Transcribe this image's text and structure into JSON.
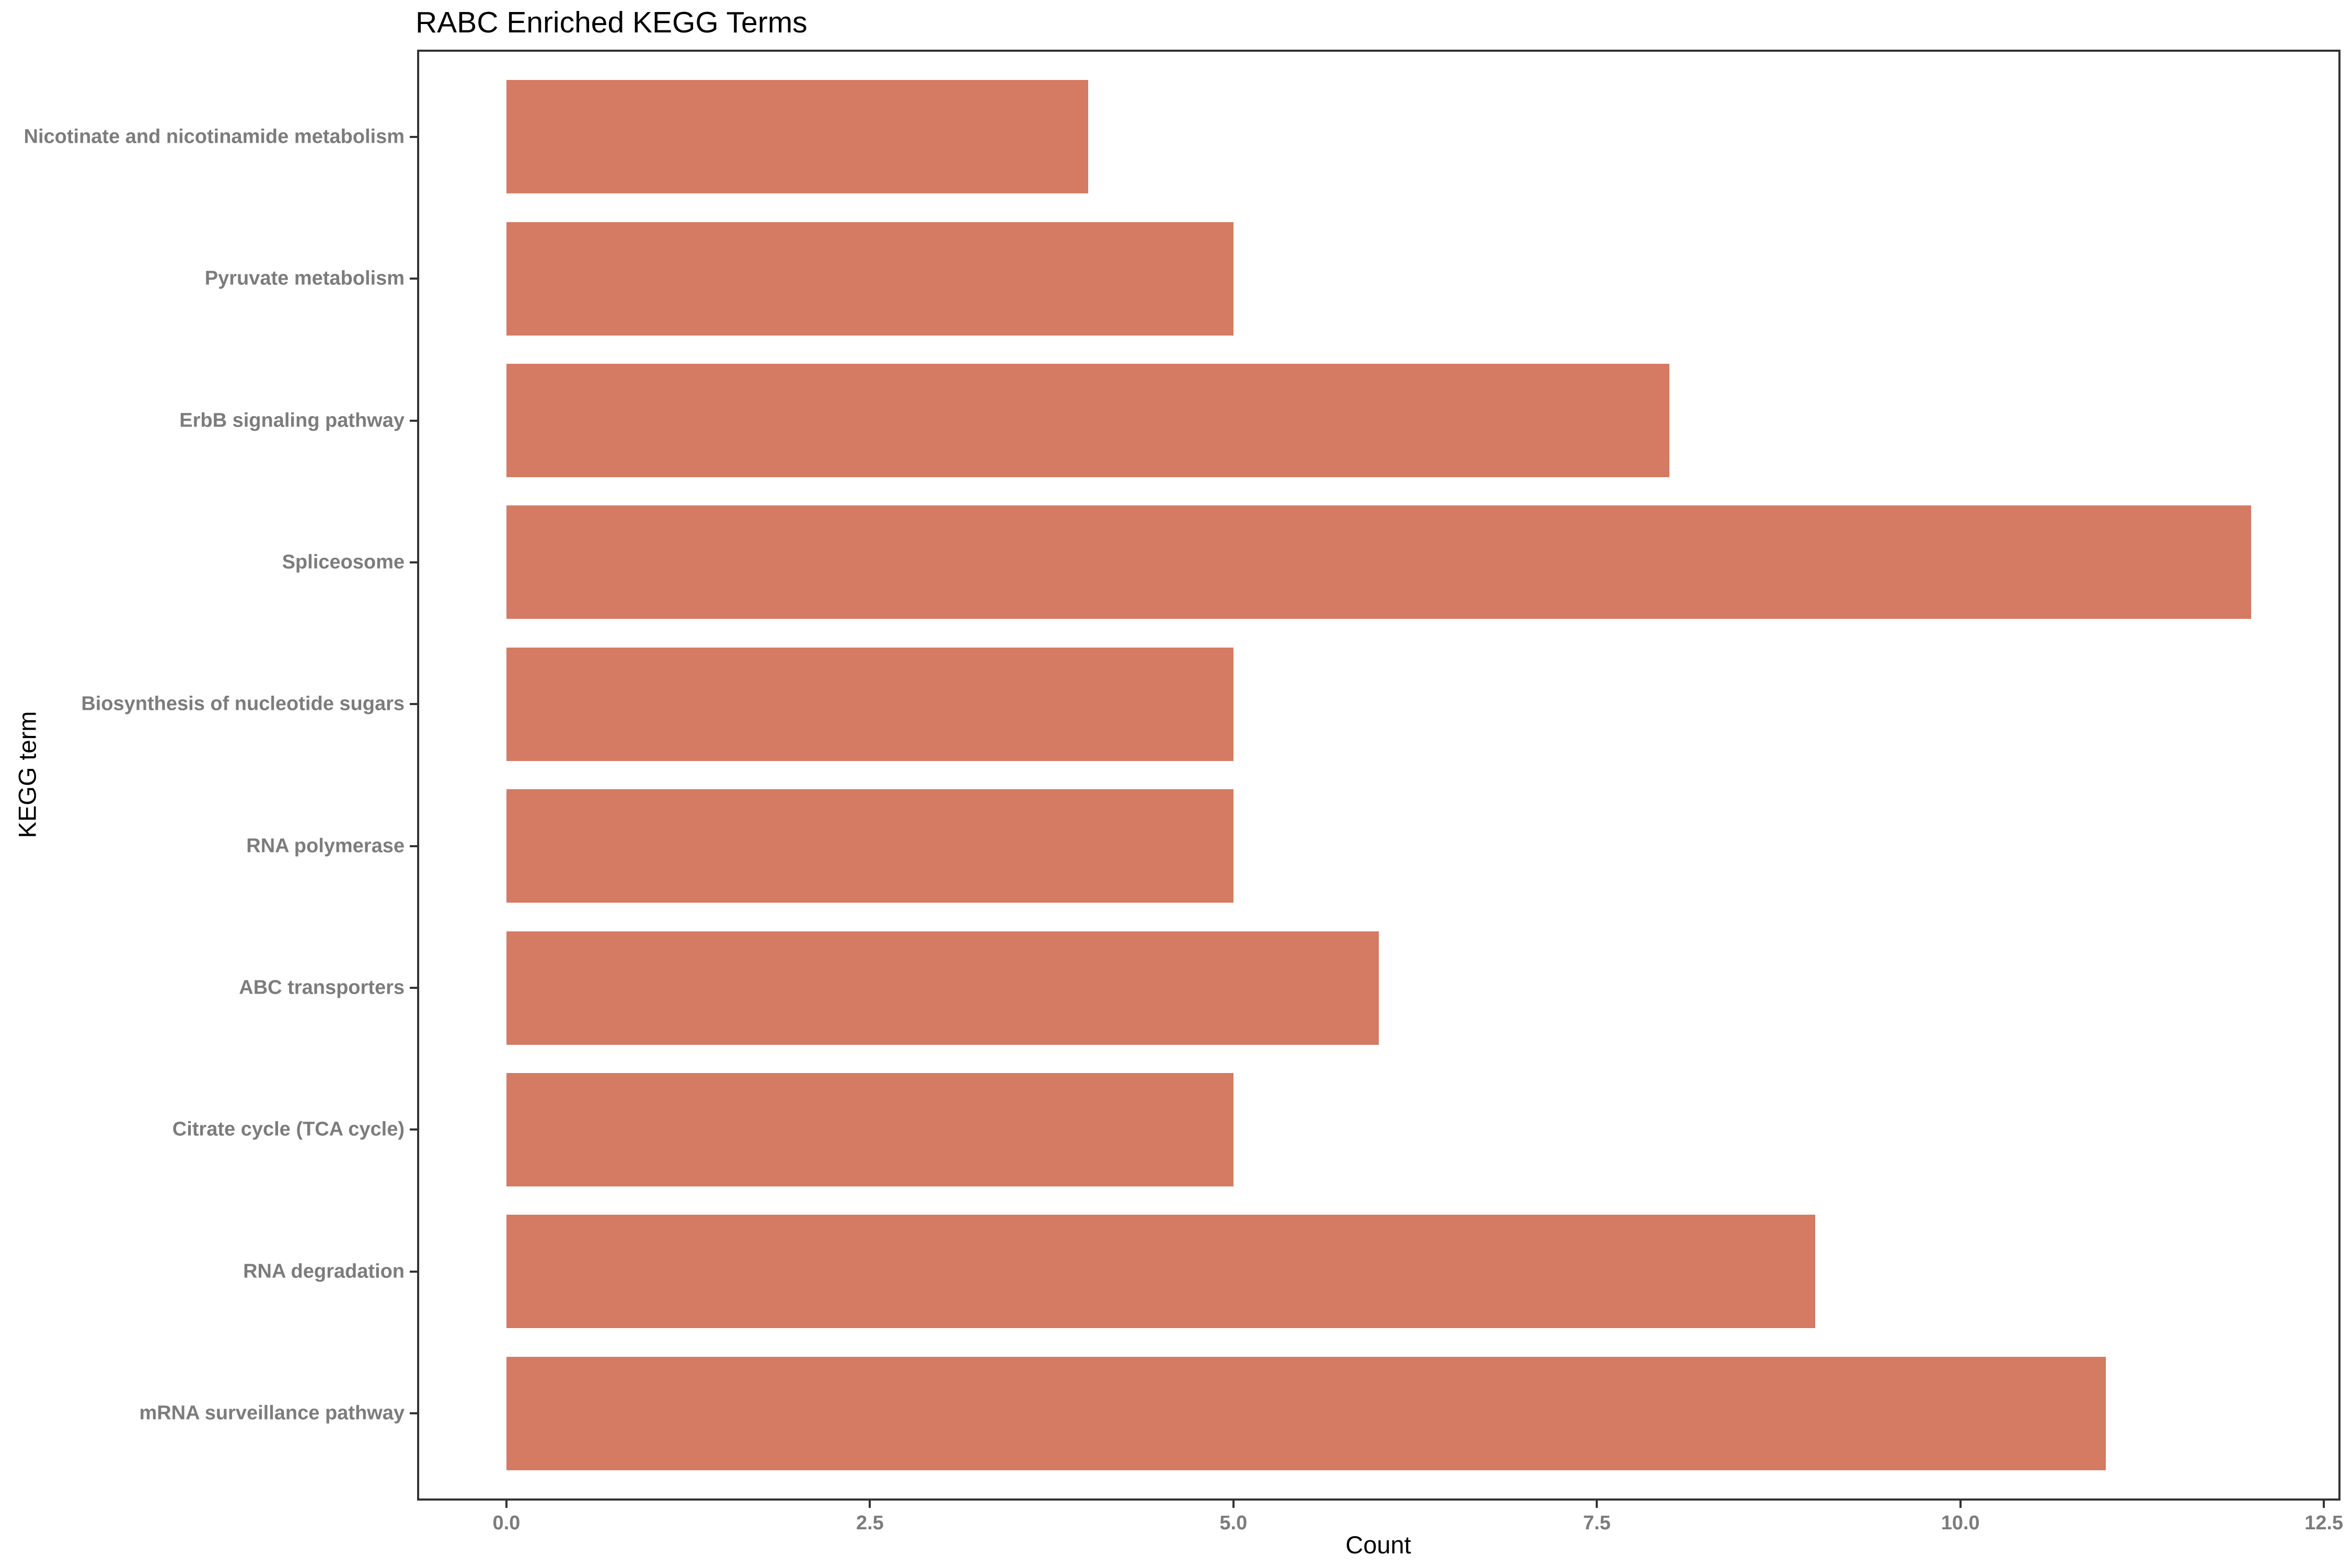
{
  "title": "RABC Enriched KEGG Terms",
  "chart_data": {
    "type": "bar",
    "orientation": "horizontal",
    "title": "RABC Enriched KEGG Terms",
    "xlabel": "Count",
    "ylabel": "KEGG term",
    "categories": [
      "Nicotinate and nicotinamide metabolism",
      "Pyruvate metabolism",
      "ErbB signaling pathway",
      "Spliceosome",
      "Biosynthesis of nucleotide sugars",
      "RNA polymerase",
      "ABC transporters",
      "Citrate cycle (TCA cycle)",
      "RNA degradation",
      "mRNA surveillance pathway"
    ],
    "values": [
      4,
      5,
      8,
      12,
      5,
      5,
      6,
      5,
      9,
      11
    ],
    "xlim": [
      0,
      12.5
    ],
    "xticks": [
      0.0,
      2.5,
      5.0,
      7.5,
      10.0,
      12.5
    ],
    "xtick_labels": [
      "0.0",
      "2.5",
      "5.0",
      "7.5",
      "10.0",
      "12.5"
    ],
    "bar_color": "#D57A63",
    "panel_border_color": "#333333",
    "axis_text_color": "#7C7C7C",
    "title_color": "#000000",
    "grid": false,
    "legend_position": "none"
  }
}
